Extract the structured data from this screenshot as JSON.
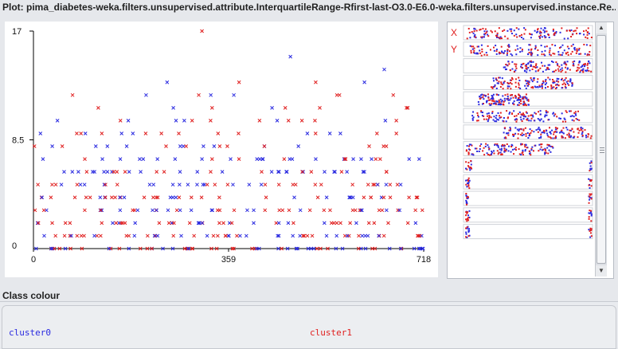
{
  "window": {
    "title": "Plot: pima_diabetes-weka.filters.unsupervised.attribute.InterquartileRange-Rfirst-last-O3.0-E6.0-weka.filters.unsupervised.instance.Re..."
  },
  "colors": {
    "cluster0": "#2a2ae0",
    "cluster1": "#e01f1f",
    "panel_bg": "#ffffff",
    "window_bg": "#e6e8ec"
  },
  "chart_data": {
    "type": "scatter",
    "marker": "x",
    "x_axis_ticks": [
      "0",
      "359",
      "718"
    ],
    "y_axis_ticks": [
      "0",
      "8.5",
      "17"
    ],
    "xlim": [
      0,
      718
    ],
    "ylim": [
      0,
      17
    ],
    "grid": false,
    "series": [
      {
        "name": "cluster0",
        "color": "#2a2ae0"
      },
      {
        "name": "cluster1",
        "color": "#e01f1f"
      }
    ],
    "level_counts": [
      60,
      55,
      45,
      45,
      42,
      40,
      38,
      30,
      20,
      18,
      14,
      8,
      8,
      4,
      1,
      1,
      0,
      1
    ]
  },
  "attribute_panel": {
    "x_marker": "X",
    "y_marker": "Y",
    "row_count": 13
  },
  "scrollbar": {
    "up_icon": "▲",
    "down_icon": "▼"
  },
  "class_colour": {
    "label": "Class colour",
    "items": [
      {
        "name": "cluster0",
        "color": "#2a2ae0"
      },
      {
        "name": "cluster1",
        "color": "#e01f1f"
      }
    ]
  }
}
